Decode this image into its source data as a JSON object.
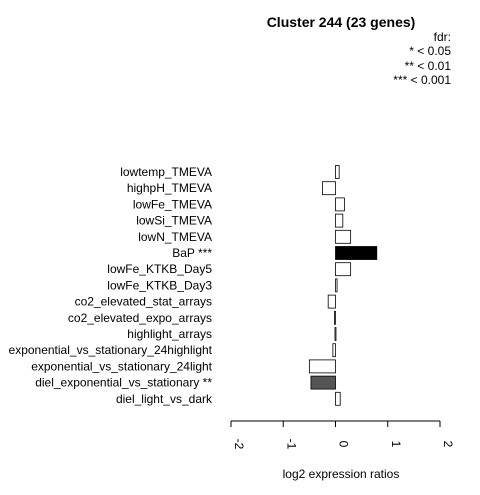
{
  "chart_data": {
    "type": "bar",
    "orientation": "horizontal",
    "title": "Cluster 244 (23 genes)",
    "xlabel": "log2 expression ratios",
    "ylabel": "",
    "xlim": [
      -2,
      2
    ],
    "xticks": [
      "-2",
      "-1",
      "0",
      "1",
      "2"
    ],
    "legend": {
      "placement": "top-right",
      "title": "fdr:",
      "entries": [
        "* < 0.05",
        "** < 0.01",
        "*** < 0.001"
      ]
    },
    "categories": [
      "lowtemp_TMEVA",
      "highpH_TMEVA",
      "lowFe_TMEVA",
      "lowSi_TMEVA",
      "lowN_TMEVA",
      "BaP ***",
      "lowFe_KTKB_Day5",
      "lowFe_KTKB_Day3",
      "co2_elevated_stat_arrays",
      "co2_elevated_expo_arrays",
      "highlight_arrays",
      "exponential_vs_stationary_24highlight",
      "exponential_vs_stationary_24light",
      "diel_exponential_vs_stationary **",
      "diel_light_vs_dark"
    ],
    "values": [
      0.07,
      -0.25,
      0.17,
      0.14,
      0.29,
      0.79,
      0.29,
      0.03,
      -0.14,
      -0.02,
      -0.01,
      -0.05,
      -0.5,
      -0.47,
      0.09
    ],
    "bar_colors": [
      "#ffffff",
      "#ffffff",
      "#ffffff",
      "#ffffff",
      "#ffffff",
      "#000000",
      "#ffffff",
      "#ffffff",
      "#ffffff",
      "#ffffff",
      "#ffffff",
      "#ffffff",
      "#ffffff",
      "#555555",
      "#ffffff"
    ]
  }
}
